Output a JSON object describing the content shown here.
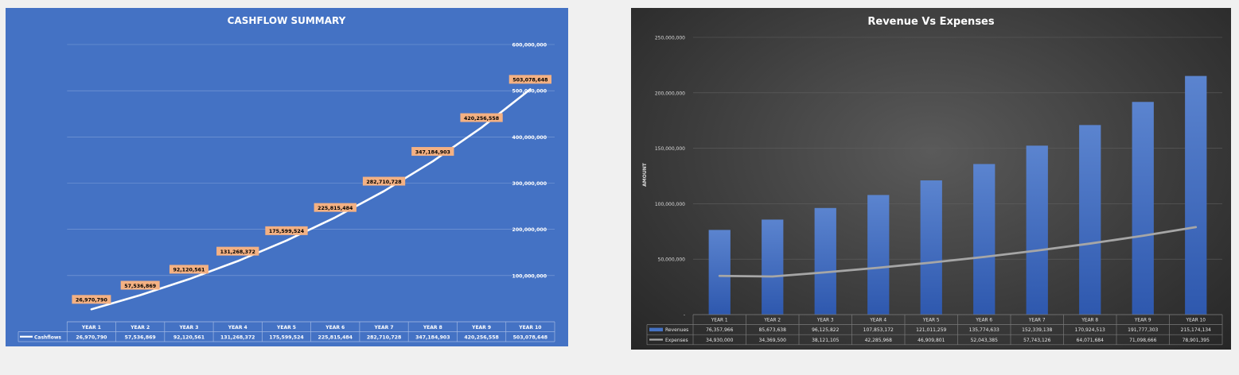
{
  "colors": {
    "cashflow_bg": "#4472c4",
    "cashflow_line": "#ffffff",
    "cashflow_label_bg": "#f4b183",
    "revenue_bar": "#4472c4",
    "expense_line": "#a6a6a6"
  },
  "chart_data": [
    {
      "type": "line",
      "title": "CASHFLOW SUMMARY",
      "categories": [
        "YEAR 1",
        "YEAR 2",
        "YEAR 3",
        "YEAR 4",
        "YEAR 5",
        "YEAR 6",
        "YEAR 7",
        "YEAR 8",
        "YEAR 9",
        "YEAR 10"
      ],
      "series": [
        {
          "name": "Cashflows",
          "values": [
            26970790,
            57536869,
            92120561,
            131268372,
            175599524,
            225815484,
            282710728,
            347184903,
            420256558,
            503078648
          ],
          "labels": [
            "26,970,790",
            "57,536,869",
            "92,120,561",
            "131,268,372",
            "175,599,524",
            "225,815,484",
            "282,710,728",
            "347,184,903",
            "420,256,558",
            "503,078,648"
          ]
        }
      ],
      "ylim": [
        0,
        600000000
      ],
      "yticks": [
        "",
        "100,000,000",
        "200,000,000",
        "300,000,000",
        "400,000,000",
        "500,000,000",
        "600,000,000"
      ],
      "y_axis_side": "right",
      "grid": true,
      "data_table": true
    },
    {
      "type": "bar",
      "title": "Revenue Vs Expenses",
      "ylabel": "AMOUNT",
      "categories": [
        "YEAR 1",
        "YEAR 2",
        "YEAR 3",
        "YEAR 4",
        "YEAR 5",
        "YEAR 6",
        "YEAR 7",
        "YEAR 8",
        "YEAR 9",
        "YEAR 10"
      ],
      "series": [
        {
          "name": "Revenues",
          "type": "bar",
          "values": [
            76357966,
            85673638,
            96125822,
            107853172,
            121011259,
            135774633,
            152339138,
            170924513,
            191777303,
            215174134
          ],
          "labels": [
            "76,357,966",
            "85,673,638",
            "96,125,822",
            "107,853,172",
            "121,011,259",
            "135,774,633",
            "152,339,138",
            "170,924,513",
            "191,777,303",
            "215,174,134"
          ]
        },
        {
          "name": "Expenses",
          "type": "line",
          "values": [
            34930000,
            34369500,
            38121105,
            42285968,
            46909801,
            52043385,
            57743126,
            64071684,
            71098666,
            78901395
          ],
          "labels": [
            "34,930,000",
            "34,369,500",
            "38,121,105",
            "42,285,968",
            "46,909,801",
            "52,043,385",
            "57,743,126",
            "64,071,684",
            "71,098,666",
            "78,901,395"
          ]
        }
      ],
      "ylim": [
        0,
        250000000
      ],
      "yticks": [
        "-",
        "50,000,000",
        "100,000,000",
        "150,000,000",
        "200,000,000",
        "250,000,000"
      ],
      "grid": true,
      "data_table": true
    }
  ]
}
